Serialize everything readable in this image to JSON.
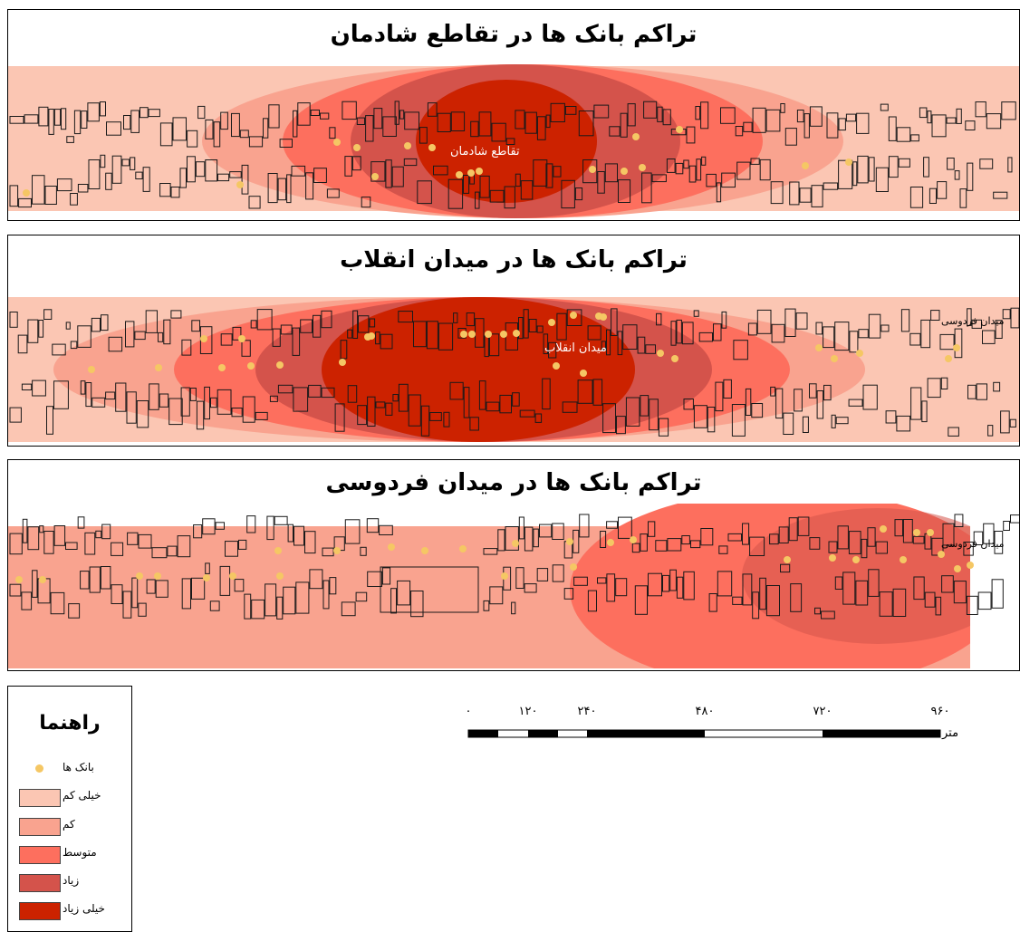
{
  "maps": [
    {
      "title": "تراکم بانک ها در تقاطع شادمان",
      "place_label": "تقاطع شادمان"
    },
    {
      "title": "تراکم بانک ها در  میدان انقلاب",
      "place_label": "میدان انقلاب",
      "secondary_label": "میدان فردوسی"
    },
    {
      "title": "تراکم بانک ها در  میدان فردوسی",
      "place_label": "میدان فردوسی"
    }
  ],
  "legend": {
    "title": "راهنما",
    "items": [
      {
        "label": "بانک ها",
        "type": "point",
        "color": "#f5c764"
      },
      {
        "label": "خیلی کم",
        "type": "area",
        "color": "#fbc6b3"
      },
      {
        "label": "کم",
        "type": "area",
        "color": "#f9a38f"
      },
      {
        "label": "متوسط",
        "type": "area",
        "color": "#fd6f5e"
      },
      {
        "label": "زیاد",
        "type": "area",
        "color": "#d4534b"
      },
      {
        "label": "خیلی زیاد",
        "type": "area",
        "color": "#cc2200"
      }
    ]
  },
  "scale_bar": {
    "ticks": [
      "۰",
      "۱۲۰",
      "۲۴۰",
      "۴۸۰",
      "۷۲۰",
      "۹۶۰"
    ],
    "unit": "متر"
  },
  "colors": {
    "very_low": "#fbc6b3",
    "low": "#f9a38f",
    "medium": "#fd6f5e",
    "high": "#d4534b",
    "very_high": "#cc2200",
    "bank_point": "#f5c764"
  }
}
